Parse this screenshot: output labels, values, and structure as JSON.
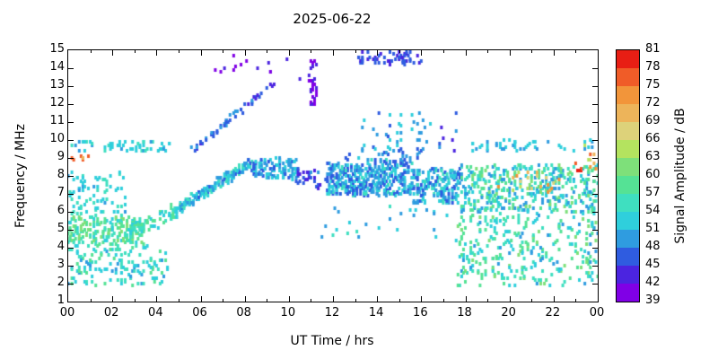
{
  "title": "2025-06-22",
  "xlabel": "UT Time / hrs",
  "ylabel": "Frequency / MHz",
  "colorbar_label": "Signal Amplitude / dB",
  "chart_data": {
    "type": "scatter",
    "title": "2025-06-22",
    "xlabel": "UT Time / hrs",
    "ylabel": "Frequency / MHz",
    "x_range": [
      0,
      24
    ],
    "y_range": [
      1,
      15
    ],
    "x_tick_values": [
      0,
      2,
      4,
      6,
      8,
      10,
      12,
      14,
      16,
      18,
      20,
      22,
      24
    ],
    "x_tick_labels": [
      "00",
      "02",
      "04",
      "06",
      "08",
      "10",
      "12",
      "14",
      "16",
      "18",
      "20",
      "22",
      "00"
    ],
    "x_minor_step": 1,
    "y_tick_values": [
      1,
      2,
      3,
      4,
      5,
      6,
      7,
      8,
      9,
      10,
      11,
      12,
      13,
      14,
      15
    ],
    "grid": false,
    "legend_position": "none",
    "colorbar": {
      "label": "Signal Amplitude / dB",
      "min": 39,
      "max": 81,
      "step": 3,
      "ticks": [
        39,
        42,
        45,
        48,
        51,
        54,
        57,
        60,
        63,
        66,
        69,
        72,
        75,
        78,
        81
      ],
      "colors": [
        "#8000e6",
        "#4b24e0",
        "#2f5ce0",
        "#2f9ce0",
        "#2fcfdc",
        "#3fdfc0",
        "#55e295",
        "#7ee07a",
        "#b4e35f",
        "#ddd27a",
        "#edb45a",
        "#f2953a",
        "#f05c28",
        "#e81e14"
      ]
    },
    "bands": [
      {
        "name": "early-9p5-line",
        "shape": "box",
        "t": [
          0,
          4.6
        ],
        "f": [
          9.35,
          9.95
        ],
        "n": 55,
        "amp": [
          50,
          55
        ]
      },
      {
        "name": "early-orange-9",
        "shape": "box",
        "t": [
          0,
          0.9
        ],
        "f": [
          8.75,
          9.2
        ],
        "n": 7,
        "amp": [
          66,
          78
        ]
      },
      {
        "name": "early-dense-5",
        "shape": "box",
        "t": [
          0,
          3.4
        ],
        "f": [
          4.2,
          5.7
        ],
        "n": 190,
        "amp": [
          53,
          63
        ]
      },
      {
        "name": "early-low-scatter",
        "shape": "box",
        "t": [
          0,
          4.5
        ],
        "f": [
          1.9,
          4.2
        ],
        "n": 150,
        "amp": [
          50,
          59
        ]
      },
      {
        "name": "early-mid-scatter",
        "shape": "box",
        "t": [
          0,
          2.6
        ],
        "f": [
          5.8,
          8.2
        ],
        "n": 80,
        "amp": [
          50,
          57
        ]
      },
      {
        "name": "morning-rise-low",
        "shape": "diag",
        "t": [
          2.6,
          5.2
        ],
        "f": [
          4.8,
          6.2
        ],
        "n": 90,
        "amp": [
          51,
          60
        ],
        "jf": 0.55
      },
      {
        "name": "main-trace-rise",
        "shape": "diag",
        "t": [
          5.0,
          8.3
        ],
        "f": [
          6.2,
          8.8
        ],
        "n": 170,
        "amp": [
          47,
          56
        ],
        "jf": 0.4
      },
      {
        "name": "trace-plateau",
        "shape": "box",
        "t": [
          8.3,
          10.4
        ],
        "f": [
          7.8,
          9.0
        ],
        "n": 110,
        "amp": [
          46,
          54
        ]
      },
      {
        "name": "second-trace",
        "shape": "diag",
        "t": [
          5.6,
          8.4
        ],
        "f": [
          9.3,
          12.3
        ],
        "n": 45,
        "amp": [
          44,
          51
        ],
        "jf": 0.3
      },
      {
        "name": "second-trace-ext",
        "shape": "diag",
        "t": [
          8.4,
          9.4
        ],
        "f": [
          12.3,
          13.2
        ],
        "n": 10,
        "amp": [
          41,
          47
        ],
        "jf": 0.25
      },
      {
        "name": "high-purple-specks",
        "shape": "box",
        "t": [
          6.0,
          10.5
        ],
        "f": [
          13.4,
          14.7
        ],
        "n": 14,
        "amp": [
          39,
          45
        ]
      },
      {
        "name": "purple-streak-11",
        "shape": "box",
        "t": [
          10.95,
          11.3
        ],
        "f": [
          11.6,
          14.6
        ],
        "n": 28,
        "amp": [
          39,
          44
        ]
      },
      {
        "name": "pre-noon-dark",
        "shape": "box",
        "t": [
          10.3,
          11.4
        ],
        "f": [
          7.3,
          8.4
        ],
        "n": 30,
        "amp": [
          42,
          49
        ]
      },
      {
        "name": "high-14-band",
        "shape": "box",
        "t": [
          13.1,
          16.0
        ],
        "f": [
          14.2,
          14.95
        ],
        "n": 55,
        "amp": [
          43,
          47
        ]
      },
      {
        "name": "midday-1",
        "shape": "box",
        "t": [
          11.7,
          13.5
        ],
        "f": [
          6.9,
          8.7
        ],
        "n": 210,
        "amp": [
          45,
          55
        ]
      },
      {
        "name": "midday-2",
        "shape": "box",
        "t": [
          13.5,
          15.6
        ],
        "f": [
          6.9,
          8.9
        ],
        "n": 210,
        "amp": [
          45,
          55
        ]
      },
      {
        "name": "midday-3",
        "shape": "box",
        "t": [
          15.6,
          17.8
        ],
        "f": [
          6.5,
          8.4
        ],
        "n": 190,
        "amp": [
          46,
          56
        ]
      },
      {
        "name": "midday-9-sparse",
        "shape": "box",
        "t": [
          12.4,
          16.2
        ],
        "f": [
          8.9,
          9.7
        ],
        "n": 35,
        "amp": [
          47,
          53
        ]
      },
      {
        "name": "midday-10-11",
        "shape": "box",
        "t": [
          13.0,
          16.6
        ],
        "f": [
          9.9,
          11.6
        ],
        "n": 30,
        "amp": [
          47,
          53
        ]
      },
      {
        "name": "late-high-specks",
        "shape": "box",
        "t": [
          16.8,
          17.7
        ],
        "f": [
          9.4,
          12.2
        ],
        "n": 8,
        "amp": [
          42,
          50
        ]
      },
      {
        "name": "noon-gap-sparse",
        "shape": "box",
        "t": [
          11.5,
          17.5
        ],
        "f": [
          4.5,
          6.3
        ],
        "n": 25,
        "amp": [
          48,
          55
        ]
      },
      {
        "name": "evening-main",
        "shape": "box",
        "t": [
          17.8,
          24
        ],
        "f": [
          6.0,
          8.6
        ],
        "n": 430,
        "amp": [
          48,
          61
        ]
      },
      {
        "name": "evening-orange",
        "shape": "box",
        "t": [
          19.4,
          22.3
        ],
        "f": [
          7.1,
          8.2
        ],
        "n": 22,
        "amp": [
          65,
          75
        ]
      },
      {
        "name": "evening-red",
        "shape": "box",
        "t": [
          22.6,
          23.3
        ],
        "f": [
          8.2,
          8.7
        ],
        "n": 5,
        "amp": [
          75,
          81
        ]
      },
      {
        "name": "edge-orange",
        "shape": "box",
        "t": [
          23.4,
          24
        ],
        "f": [
          8.3,
          9.7
        ],
        "n": 8,
        "amp": [
          63,
          78
        ]
      },
      {
        "name": "evening-low",
        "shape": "box",
        "t": [
          17.6,
          24
        ],
        "f": [
          1.9,
          5.9
        ],
        "n": 310,
        "amp": [
          50,
          61
        ]
      },
      {
        "name": "evening-9p6",
        "shape": "box",
        "t": [
          18.3,
          23.8
        ],
        "f": [
          9.4,
          10.0
        ],
        "n": 45,
        "amp": [
          49,
          54
        ]
      }
    ]
  }
}
